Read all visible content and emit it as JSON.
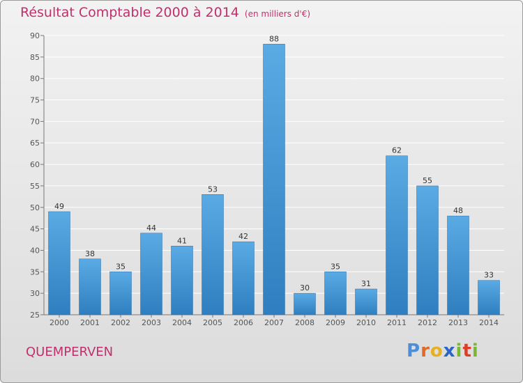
{
  "header": {
    "title": "Résultat Comptable 2000 à 2014",
    "subtitle": "(en milliers d'€)"
  },
  "footer": {
    "commune": "QUEMPERVEN",
    "logo_text": "Proxiti"
  },
  "colors": {
    "title": "#c0306a",
    "bar_top": "#5aaae4",
    "bar_bottom": "#2f7fc0"
  },
  "chart_data": {
    "type": "bar",
    "title": "Résultat Comptable 2000 à 2014",
    "subtitle": "(en milliers d'€)",
    "xlabel": "",
    "ylabel": "",
    "categories": [
      "2000",
      "2001",
      "2002",
      "2003",
      "2004",
      "2005",
      "2006",
      "2007",
      "2008",
      "2009",
      "2010",
      "2011",
      "2012",
      "2013",
      "2014"
    ],
    "values": [
      49,
      38,
      35,
      44,
      41,
      53,
      42,
      88,
      30,
      35,
      31,
      62,
      55,
      48,
      33
    ],
    "ylim": [
      25,
      90
    ],
    "yticks": [
      25,
      30,
      35,
      40,
      45,
      50,
      55,
      60,
      65,
      70,
      75,
      80,
      85,
      90
    ],
    "grid": "horizontal",
    "data_labels": true
  }
}
